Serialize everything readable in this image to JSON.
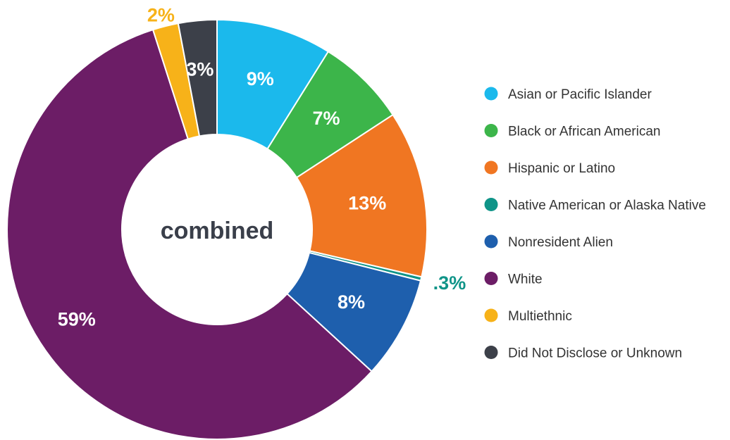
{
  "chart_data": {
    "type": "pie",
    "donut": true,
    "center_label": "combined",
    "slices": [
      {
        "name": "Asian or Pacific Islander",
        "value": 9,
        "label": "9%",
        "color": "#1bb9ec",
        "label_color": "#ffffff"
      },
      {
        "name": "Black or African American",
        "value": 7,
        "label": "7%",
        "color": "#3cb54a",
        "label_color": "#ffffff"
      },
      {
        "name": "Hispanic or Latino",
        "value": 13,
        "label": "13%",
        "color": "#f07622",
        "label_color": "#ffffff"
      },
      {
        "name": "Native American or Alaska Native",
        "value": 0.3,
        "label": ".3%",
        "color": "#0f9488",
        "label_color": "#0f9488"
      },
      {
        "name": "Nonresident Alien",
        "value": 8,
        "label": "8%",
        "color": "#1e5fad",
        "label_color": "#ffffff"
      },
      {
        "name": "White",
        "value": 59,
        "label": "59%",
        "color": "#6c1d66",
        "label_color": "#ffffff"
      },
      {
        "name": "Multiethnic",
        "value": 2,
        "label": "2%",
        "color": "#f7b219",
        "label_color": "#f7b219"
      },
      {
        "name": "Did Not Disclose or Unknown",
        "value": 3,
        "label": "3%",
        "color": "#3c4049",
        "label_color": "#ffffff"
      }
    ],
    "legend_position": "right"
  }
}
